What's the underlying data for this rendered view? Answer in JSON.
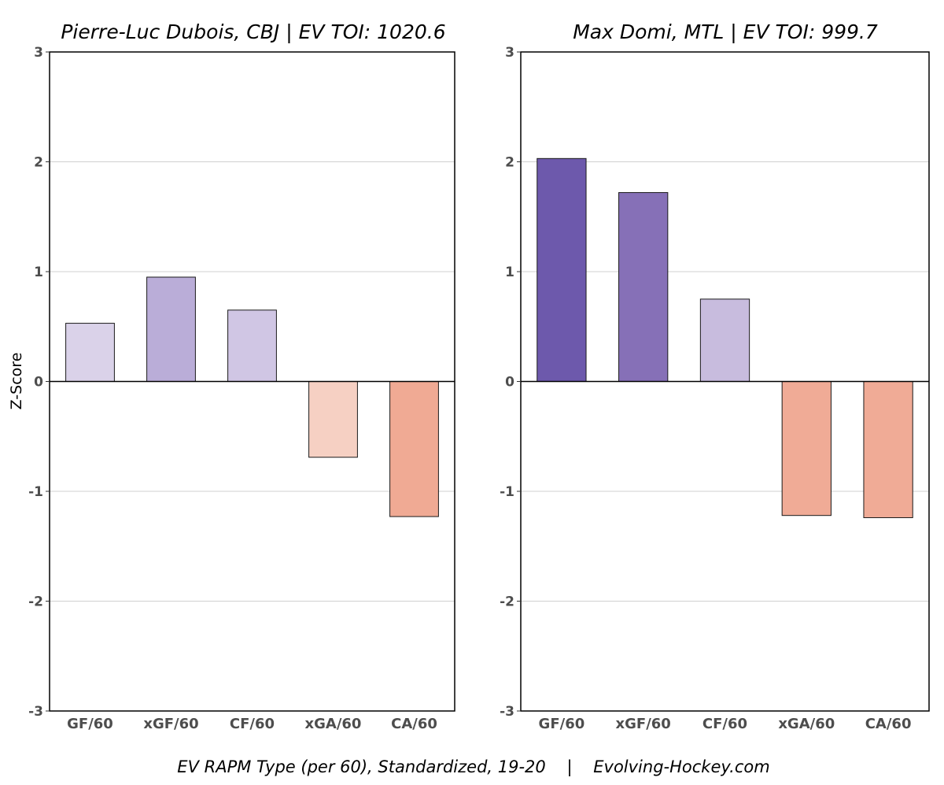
{
  "chart_data": [
    {
      "type": "bar",
      "title": "Pierre-Luc Dubois, CBJ  |  EV TOI: 1020.6",
      "ylabel": "Z-Score",
      "xlabel": "EV RAPM Type (per 60), Standardized, 19-20    |    Evolving-Hockey.com",
      "ylim": [
        -3,
        3
      ],
      "yticks": [
        "3",
        "2",
        "1",
        "0",
        "-1",
        "-2",
        "-3"
      ],
      "categories": [
        "GF/60",
        "xGF/60",
        "CF/60",
        "xGA/60",
        "CA/60"
      ],
      "values": [
        0.53,
        0.95,
        0.65,
        -0.69,
        -1.23
      ],
      "colors": [
        "#dad2e9",
        "#baadd8",
        "#d0c6e4",
        "#f6d0c3",
        "#f0aa94"
      ]
    },
    {
      "type": "bar",
      "title": "Max Domi, MTL  |  EV TOI: 999.7",
      "ylabel": "",
      "xlabel": "EV RAPM Type (per 60), Standardized, 19-20    |    Evolving-Hockey.com",
      "ylim": [
        -3,
        3
      ],
      "yticks": [
        "3",
        "2",
        "1",
        "0",
        "-1",
        "-2",
        "-3"
      ],
      "categories": [
        "GF/60",
        "xGF/60",
        "CF/60",
        "xGA/60",
        "CA/60"
      ],
      "values": [
        2.03,
        1.72,
        0.75,
        -1.22,
        -1.24
      ],
      "colors": [
        "#6d59ac",
        "#8670b7",
        "#c8bcde",
        "#f0ab96",
        "#f0ab96"
      ]
    }
  ],
  "caption": "EV RAPM Type (per 60), Standardized, 19-20    |    Evolving-Hockey.com"
}
